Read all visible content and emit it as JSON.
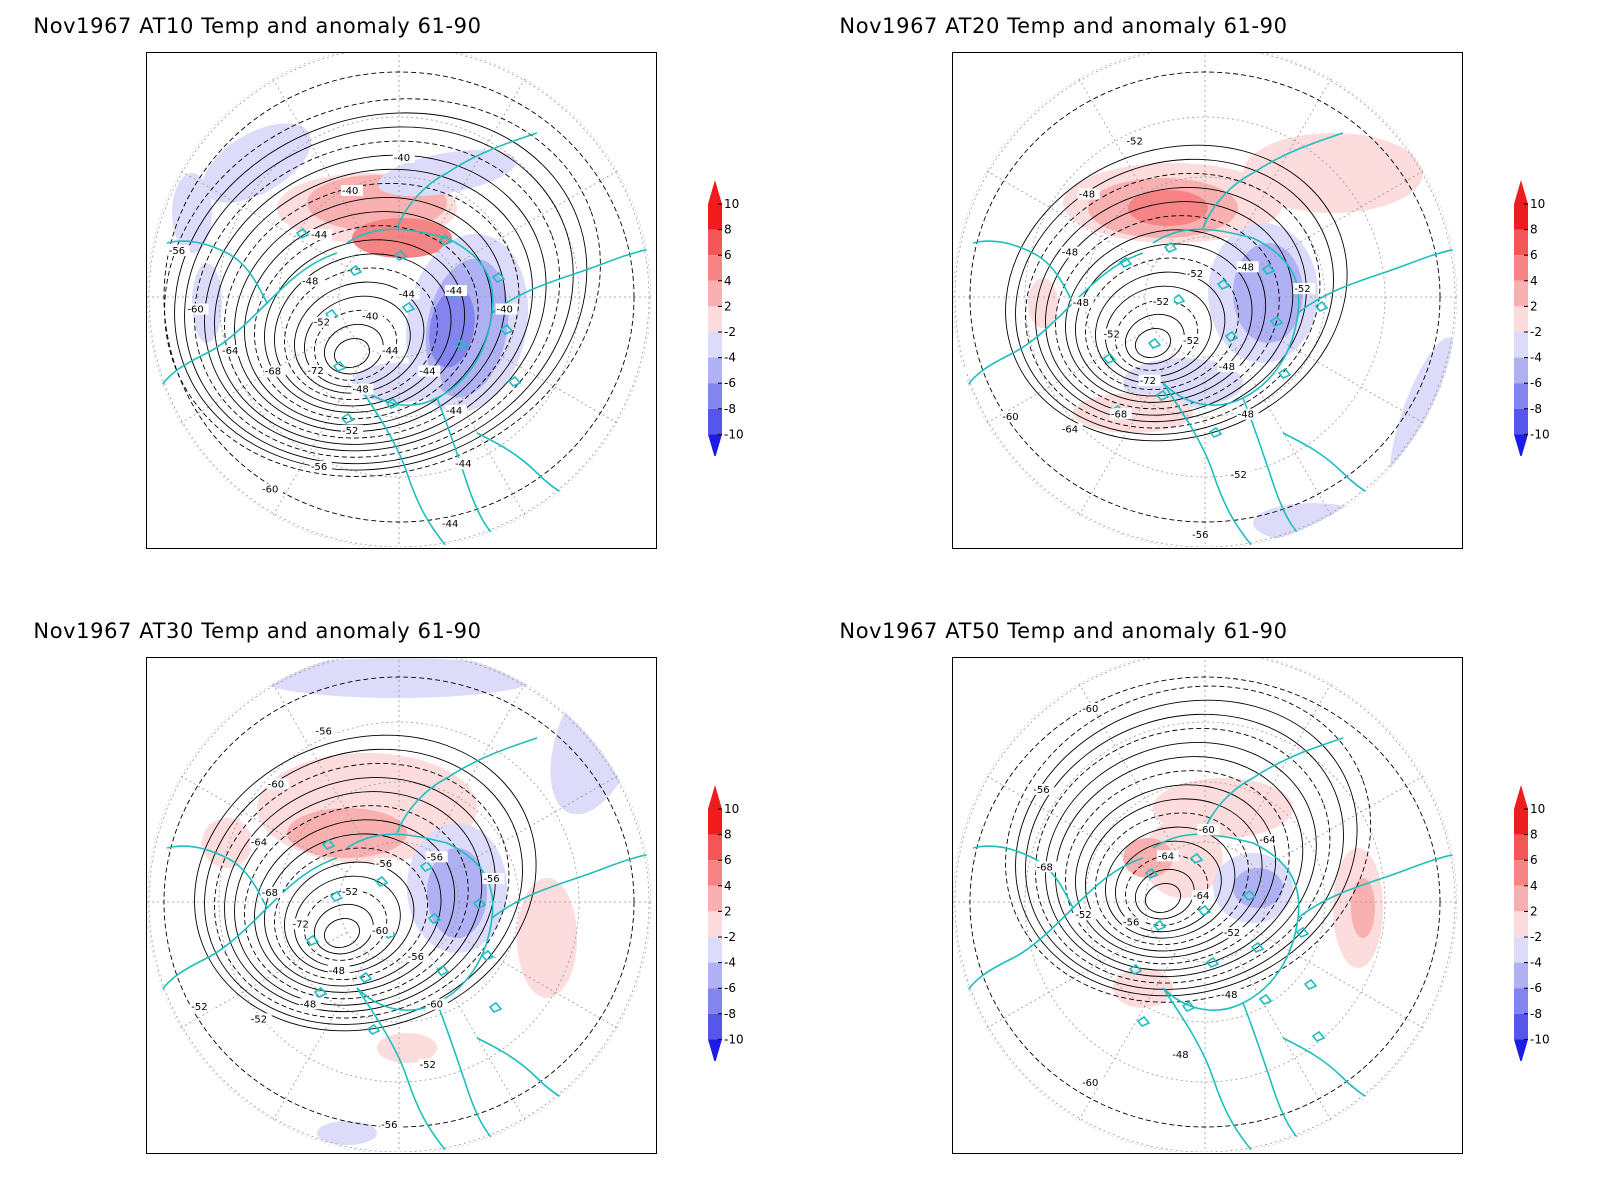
{
  "panels": [
    {
      "title": "Nov1967 AT10 Temp and anomaly 61-90",
      "contour_labels": [
        "-44",
        "-44",
        "-44",
        "-44",
        "-44",
        "-48",
        "-52",
        "-56",
        "-60",
        "-68",
        "-72",
        "-68",
        "-64",
        "-60",
        "-56",
        "-52",
        "-48",
        "-44",
        "-40",
        "-40",
        "-40",
        "-44",
        "-44",
        "-40"
      ]
    },
    {
      "title": "Nov1967 AT20 Temp and anomaly 61-90",
      "contour_labels": [
        "-52",
        "-48",
        "-48",
        "-52",
        "-56",
        "-72",
        "-68",
        "-64",
        "-60",
        "-56",
        "-52",
        "-48",
        "-48",
        "-48",
        "-52",
        "-52",
        "-52",
        "-48",
        "-52"
      ]
    },
    {
      "title": "Nov1967 AT30 Temp and anomaly 61-90",
      "contour_labels": [
        "-60",
        "-56",
        "-60",
        "-52",
        "-56",
        "-48",
        "-48",
        "-52",
        "-52",
        "-56",
        "-72",
        "-68",
        "-64",
        "-60",
        "-56",
        "-52",
        "-56",
        "-56",
        "-56"
      ]
    },
    {
      "title": "Nov1967 AT50 Temp and anomaly 61-90",
      "contour_labels": [
        "-64",
        "-52",
        "-48",
        "-48",
        "-60",
        "-56",
        "-52",
        "-68",
        "-56",
        "-60",
        "-64",
        "-60",
        "-64"
      ]
    }
  ],
  "colorbar": {
    "ticks": [
      "10",
      "8",
      "6",
      "4",
      "2",
      "-2",
      "-4",
      "-6",
      "-8",
      "-10"
    ],
    "colors": [
      "#ee1c1c",
      "#f25656",
      "#f68484",
      "#f9b0b0",
      "#fcdcdc",
      "#ffffff",
      "#dcdcfa",
      "#b0b0f4",
      "#8484ee",
      "#5656ea",
      "#1c1ce6"
    ]
  },
  "icons": {
    "coastline": "coastline-overlay"
  }
}
